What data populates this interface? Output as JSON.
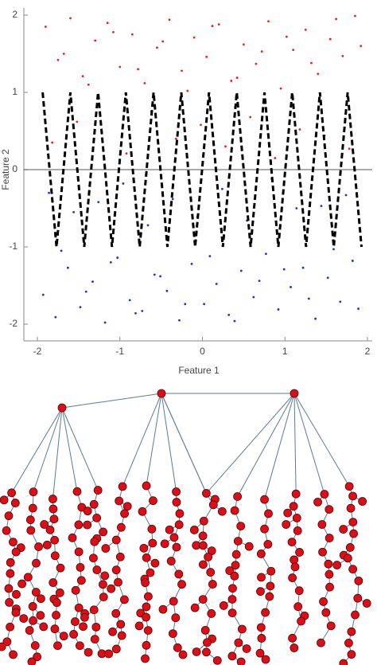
{
  "chart_data": {
    "type": "scatter",
    "x_label": "Feature 1",
    "y_label": "Feature 2",
    "xlim": [
      -2,
      2
    ],
    "ylim": [
      -2,
      2
    ],
    "xticks": [
      -2,
      -1,
      0,
      1,
      2
    ],
    "yticks": [
      -2,
      -1,
      0,
      1,
      2
    ],
    "series": [
      {
        "color": "#e8231c",
        "x": [
          -1.9,
          -1.75,
          -1.6,
          -1.45,
          -1.3,
          -1.15,
          -1.0,
          -0.85,
          -0.7,
          -0.55,
          -0.4,
          -0.25,
          -0.1,
          0.05,
          0.2,
          0.35,
          0.5,
          0.65,
          0.8,
          0.95,
          1.1,
          1.25,
          1.4,
          1.55,
          1.7,
          1.85,
          -1.82,
          -1.52,
          -1.22,
          -0.92,
          -0.62,
          -0.32,
          -0.02,
          0.28,
          0.58,
          0.88,
          1.18,
          1.48,
          1.78,
          -1.68,
          -1.38,
          -1.08,
          -0.78,
          -0.48,
          -0.18,
          0.12,
          0.42,
          0.72,
          1.02,
          1.32,
          1.62,
          1.92
        ],
        "y": [
          1.85,
          1.42,
          1.96,
          1.21,
          1.67,
          1.9,
          1.33,
          1.75,
          1.12,
          1.58,
          1.94,
          1.28,
          1.71,
          1.46,
          1.88,
          1.15,
          1.62,
          1.37,
          1.92,
          1.05,
          1.55,
          1.81,
          1.24,
          1.69,
          1.47,
          1.99,
          0.35,
          0.62,
          0.48,
          0.21,
          0.75,
          0.4,
          0.58,
          0.3,
          0.68,
          0.15,
          0.52,
          0.44,
          0.27,
          1.5,
          1.1,
          1.78,
          1.3,
          1.66,
          1.02,
          1.86,
          1.19,
          1.53,
          1.72,
          1.38,
          1.95,
          1.6
        ]
      },
      {
        "color": "#1f2fd6",
        "x": [
          -1.93,
          -1.78,
          -1.63,
          -1.48,
          -1.33,
          -1.18,
          -1.03,
          -0.88,
          -0.73,
          -0.58,
          -0.43,
          -0.28,
          -0.13,
          0.02,
          0.17,
          0.32,
          0.47,
          0.62,
          0.77,
          0.92,
          1.07,
          1.22,
          1.37,
          1.52,
          1.67,
          1.82,
          -1.86,
          -1.56,
          -1.26,
          -0.96,
          -0.66,
          -0.36,
          -0.06,
          0.24,
          0.54,
          0.84,
          1.14,
          1.44,
          1.74,
          -1.71,
          -1.41,
          -1.11,
          -0.81,
          -0.51,
          -0.21,
          0.09,
          0.39,
          0.69,
          0.99,
          1.29,
          1.59,
          1.89
        ],
        "y": [
          -1.62,
          -1.91,
          -1.27,
          -1.78,
          -1.45,
          -1.98,
          -1.14,
          -1.69,
          -1.83,
          -1.36,
          -1.57,
          -1.95,
          -1.22,
          -1.74,
          -1.48,
          -1.88,
          -1.31,
          -1.65,
          -1.09,
          -1.81,
          -1.52,
          -1.27,
          -1.93,
          -1.4,
          -1.71,
          -1.18,
          -0.3,
          -0.55,
          -0.42,
          -0.18,
          -0.72,
          -0.38,
          -0.61,
          -0.25,
          -0.66,
          -0.12,
          -0.5,
          -0.47,
          -0.33,
          -1.05,
          -1.58,
          -1.2,
          -1.86,
          -1.38,
          -1.74,
          -1.12,
          -1.96,
          -1.44,
          -1.29,
          -1.67,
          -1.03,
          -1.8
        ]
      }
    ],
    "curve": {
      "color": "#000000",
      "x": [
        -1.936,
        -1.852,
        -1.768,
        -1.684,
        -1.6,
        -1.516,
        -1.432,
        -1.348,
        -1.264,
        -1.18,
        -1.096,
        -1.012,
        -0.928,
        -0.844,
        -0.76,
        -0.676,
        -0.592,
        -0.508,
        -0.424,
        -0.34,
        -0.256,
        -0.172,
        -0.088,
        -0.004,
        0.08,
        0.164,
        0.248,
        0.332,
        0.416,
        0.5,
        0.584,
        0.668,
        0.752,
        0.836,
        0.92,
        1.004,
        1.088,
        1.172,
        1.256,
        1.34,
        1.424,
        1.508,
        1.592,
        1.676,
        1.76,
        1.844,
        1.928
      ],
      "y": [
        1,
        0,
        -1,
        0,
        1,
        0,
        -1,
        0,
        1,
        0,
        -1,
        0,
        1,
        0,
        -1,
        0,
        1,
        0,
        -1,
        0,
        1,
        0,
        -1,
        0,
        1,
        0,
        -1,
        0,
        1,
        0,
        -1,
        0,
        1,
        0,
        -1,
        0,
        1,
        0,
        -1,
        0,
        1,
        0,
        -1,
        0,
        1,
        0,
        -1
      ]
    }
  }
}
